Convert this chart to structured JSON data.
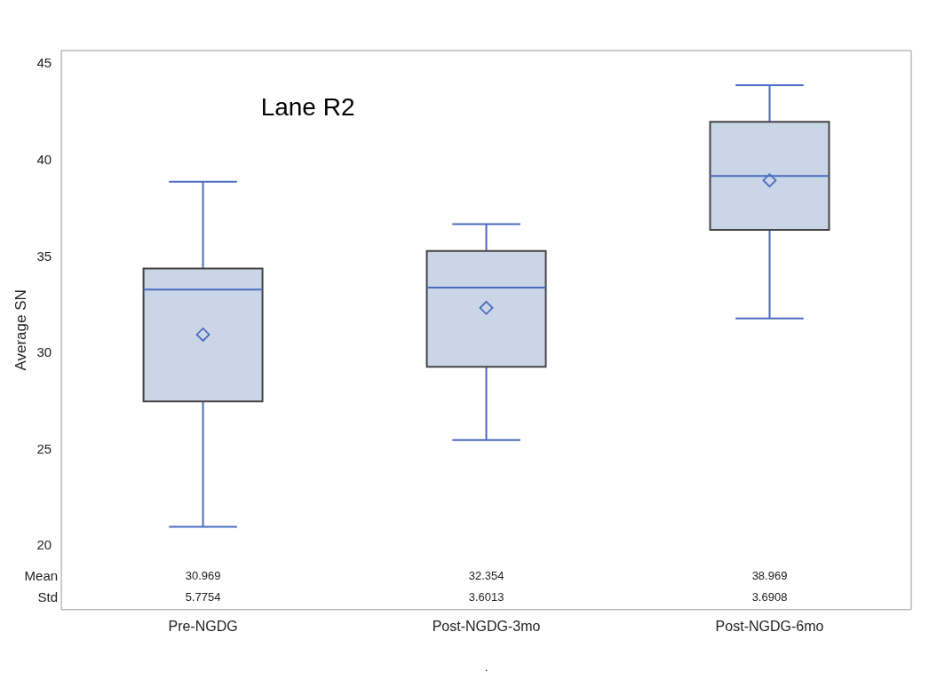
{
  "chart_data": {
    "type": "box",
    "title": "Lane R2",
    "ylabel": "Average SN",
    "categories": [
      "Pre-NGDG",
      "Post-NGDG-3mo",
      "Post-NGDG-6mo"
    ],
    "series": [
      {
        "color": "#cad6e7",
        "boxes": [
          {
            "low": 21,
            "q1": 27.5,
            "median": 33.3,
            "q3": 34.4,
            "high": 38.9,
            "mean": 30.969
          },
          {
            "low": 25.5,
            "q1": 29.3,
            "median": 33.4,
            "q3": 35.3,
            "high": 36.7,
            "mean": 32.354
          },
          {
            "low": 31.8,
            "q1": 36.4,
            "median": 39.2,
            "q3": 42,
            "high": 43.9,
            "mean": 38.969
          }
        ]
      }
    ],
    "ylim": [
      16.7,
      45.7
    ],
    "yticks": [
      20,
      25,
      30,
      35,
      40,
      45
    ],
    "marker": "diamond",
    "grid": false,
    "legend": false,
    "annotations": [
      "Mean",
      "Std",
      "30.969",
      "32.354",
      "38.969",
      "5.7754",
      "3.6013",
      "3.6908",
      "."
    ]
  }
}
